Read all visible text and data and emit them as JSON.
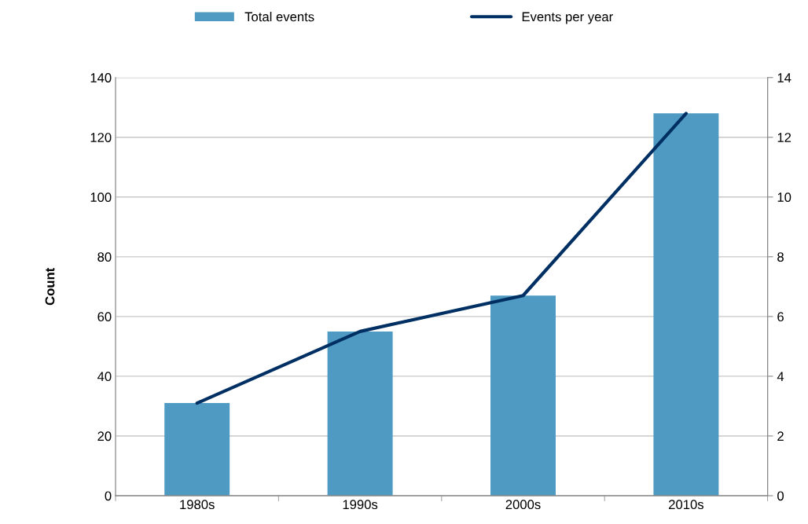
{
  "chart_data": {
    "type": "bar",
    "ylabel": "Count",
    "categories": [
      "1980s",
      "1990s",
      "2000s",
      "2010s"
    ],
    "series": [
      {
        "name": "Total events",
        "color": "#4f9ac3",
        "values": [
          31,
          55,
          67,
          128
        ]
      },
      {
        "name": "Events per year",
        "type": "line",
        "axis": "y2",
        "color": "#003063",
        "values": [
          3.1,
          5.5,
          6.7,
          12.8
        ]
      }
    ],
    "ylim": [
      0,
      140
    ],
    "yticks": [
      0,
      20,
      40,
      60,
      80,
      100,
      120,
      140
    ],
    "y2lim": [
      0,
      14
    ],
    "y2ticks": [
      0,
      2,
      4,
      6,
      8,
      10,
      12,
      14
    ],
    "grid": "y",
    "legend": "top",
    "marker": "none",
    "line_style": "solid"
  }
}
